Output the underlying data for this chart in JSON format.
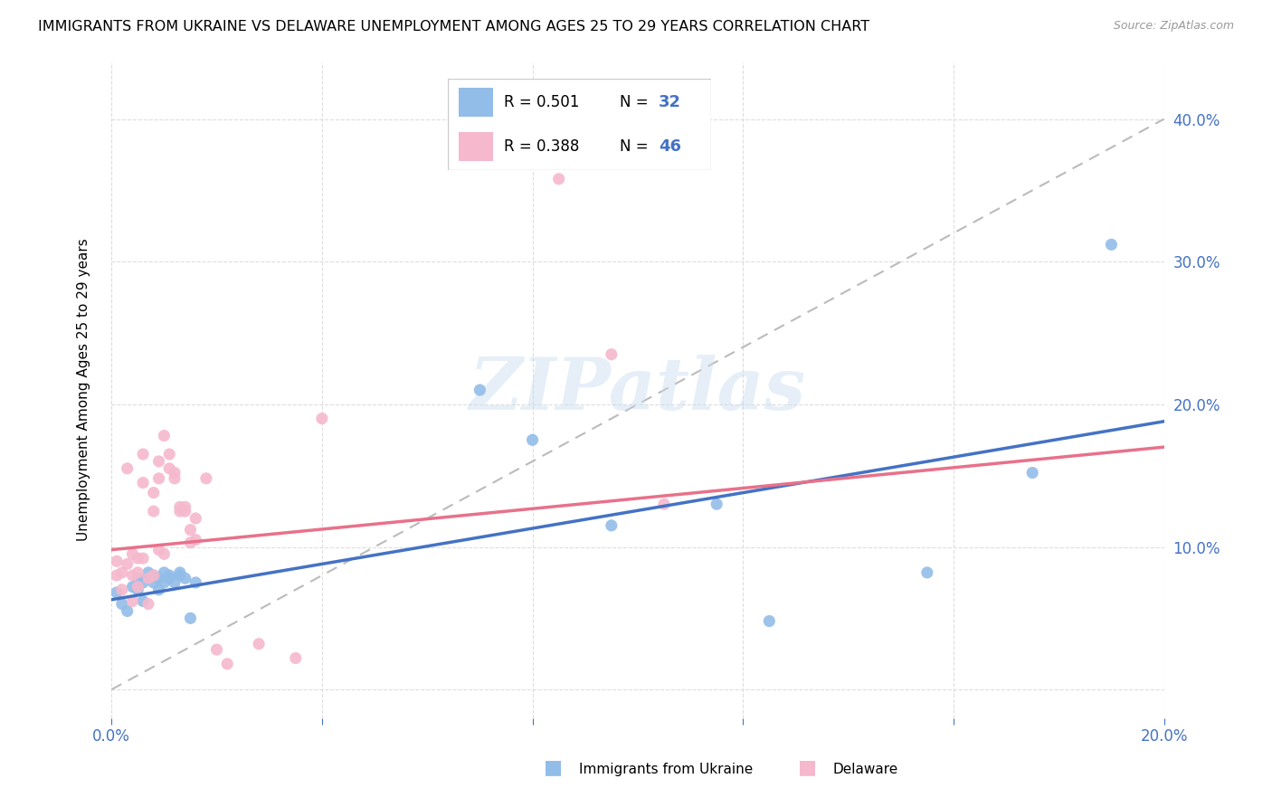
{
  "title": "IMMIGRANTS FROM UKRAINE VS DELAWARE UNEMPLOYMENT AMONG AGES 25 TO 29 YEARS CORRELATION CHART",
  "source": "Source: ZipAtlas.com",
  "ylabel": "Unemployment Among Ages 25 to 29 years",
  "xlim": [
    0.0,
    0.2
  ],
  "ylim": [
    -0.02,
    0.44
  ],
  "x_ticks": [
    0.0,
    0.04,
    0.08,
    0.12,
    0.16,
    0.2
  ],
  "x_tick_labels": [
    "0.0%",
    "",
    "",
    "",
    "",
    "20.0%"
  ],
  "y_ticks_right": [
    0.0,
    0.1,
    0.2,
    0.3,
    0.4
  ],
  "y_tick_labels_right": [
    "",
    "10.0%",
    "20.0%",
    "30.0%",
    "40.0%"
  ],
  "blue_color": "#92BDE8",
  "pink_color": "#F5B8CC",
  "blue_line_color": "#4472C4",
  "pink_line_color": "#E8718A",
  "dashed_line_color": "#BBBBBB",
  "watermark": "ZIPatlas",
  "legend_r1": "R = 0.501",
  "legend_n1": "32",
  "legend_r2": "R = 0.388",
  "legend_n2": "46",
  "legend_label1": "Immigrants from Ukraine",
  "legend_label2": "Delaware",
  "blue_line_x0": 0.0,
  "blue_line_y0": 0.063,
  "blue_line_x1": 0.2,
  "blue_line_y1": 0.188,
  "pink_line_x0": 0.0,
  "pink_line_y0": 0.098,
  "pink_line_x1": 0.2,
  "pink_line_y1": 0.17,
  "blue_scatter_x": [
    0.001,
    0.002,
    0.003,
    0.004,
    0.005,
    0.005,
    0.006,
    0.006,
    0.007,
    0.007,
    0.008,
    0.008,
    0.009,
    0.009,
    0.01,
    0.01,
    0.011,
    0.011,
    0.012,
    0.013,
    0.013,
    0.014,
    0.015,
    0.016,
    0.07,
    0.08,
    0.095,
    0.115,
    0.125,
    0.155,
    0.175,
    0.19
  ],
  "blue_scatter_y": [
    0.068,
    0.06,
    0.055,
    0.072,
    0.07,
    0.078,
    0.062,
    0.075,
    0.078,
    0.082,
    0.075,
    0.08,
    0.07,
    0.078,
    0.075,
    0.082,
    0.078,
    0.08,
    0.075,
    0.08,
    0.082,
    0.078,
    0.05,
    0.075,
    0.21,
    0.175,
    0.115,
    0.13,
    0.048,
    0.082,
    0.152,
    0.312
  ],
  "pink_scatter_x": [
    0.001,
    0.001,
    0.002,
    0.002,
    0.003,
    0.003,
    0.004,
    0.004,
    0.004,
    0.005,
    0.005,
    0.005,
    0.006,
    0.006,
    0.006,
    0.007,
    0.007,
    0.008,
    0.008,
    0.008,
    0.009,
    0.009,
    0.009,
    0.01,
    0.01,
    0.011,
    0.011,
    0.012,
    0.012,
    0.013,
    0.013,
    0.014,
    0.014,
    0.015,
    0.015,
    0.016,
    0.016,
    0.018,
    0.02,
    0.022,
    0.028,
    0.035,
    0.04,
    0.085,
    0.095,
    0.105
  ],
  "pink_scatter_y": [
    0.08,
    0.09,
    0.07,
    0.082,
    0.088,
    0.155,
    0.062,
    0.08,
    0.095,
    0.072,
    0.082,
    0.092,
    0.092,
    0.145,
    0.165,
    0.06,
    0.078,
    0.08,
    0.125,
    0.138,
    0.098,
    0.148,
    0.16,
    0.095,
    0.178,
    0.155,
    0.165,
    0.148,
    0.152,
    0.128,
    0.125,
    0.128,
    0.125,
    0.103,
    0.112,
    0.105,
    0.12,
    0.148,
    0.028,
    0.018,
    0.032,
    0.022,
    0.19,
    0.358,
    0.235,
    0.13
  ]
}
